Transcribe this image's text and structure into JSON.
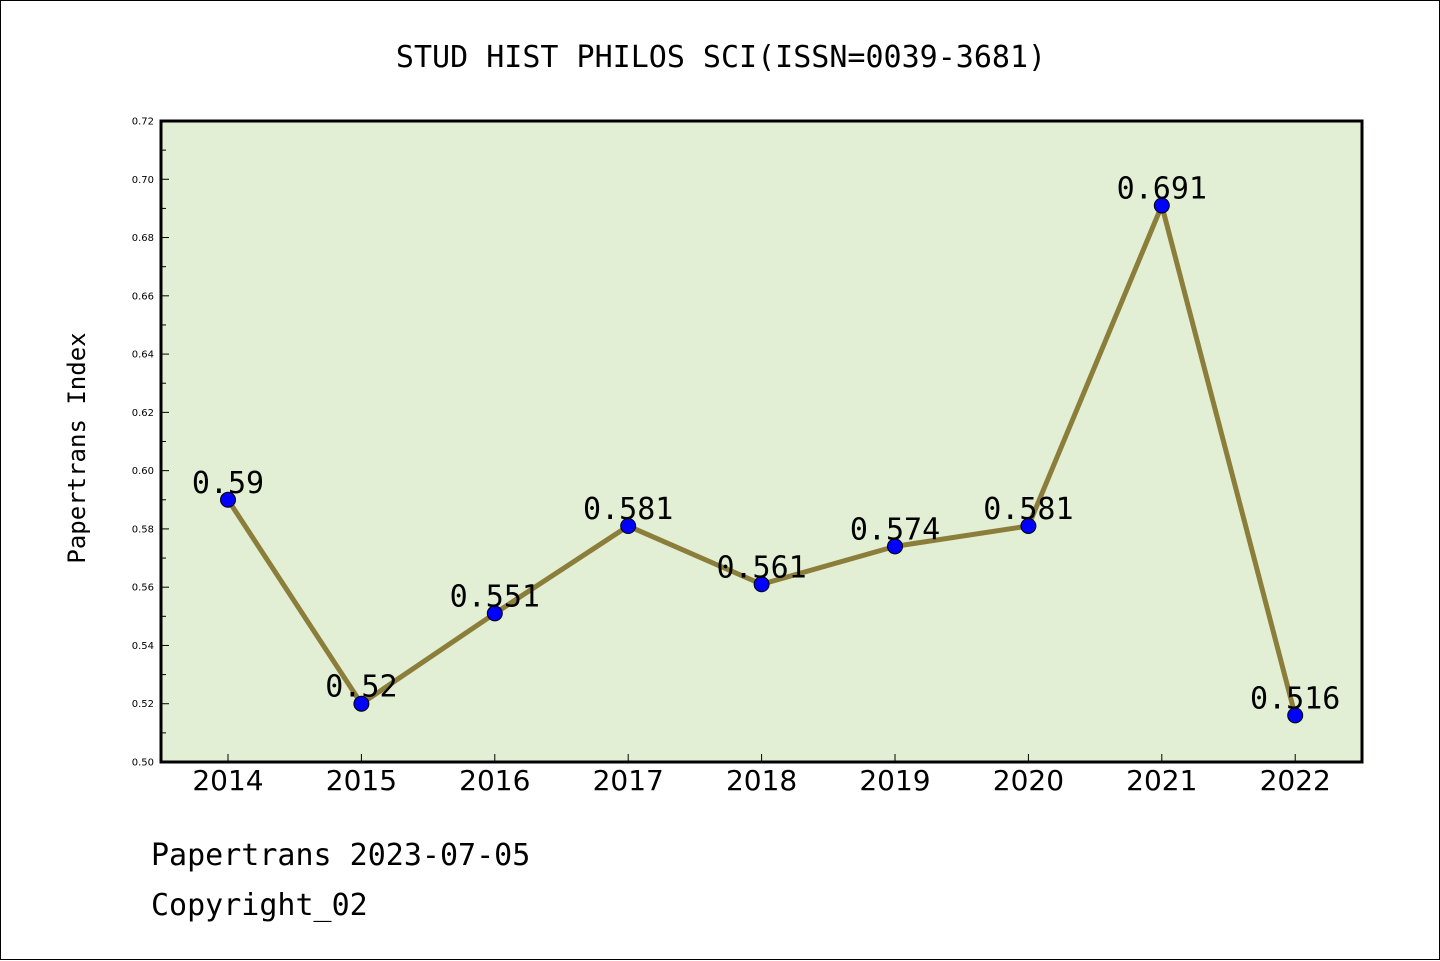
{
  "chart_data": {
    "type": "line",
    "title": "STUD HIST PHILOS SCI(ISSN=0039-3681)",
    "xlabel": "",
    "ylabel": "Papertrans Index",
    "categories": [
      "2014",
      "2015",
      "2016",
      "2017",
      "2018",
      "2019",
      "2020",
      "2021",
      "2022"
    ],
    "values": [
      0.59,
      0.52,
      0.551,
      0.581,
      0.561,
      0.574,
      0.581,
      0.691,
      0.516
    ],
    "data_labels": [
      "0.59",
      "0.52",
      "0.551",
      "0.581",
      "0.561",
      "0.574",
      "0.581",
      "0.691",
      "0.516"
    ],
    "ylim": [
      0.5,
      0.72
    ],
    "yticks": [
      "0.50",
      "0.52",
      "0.54",
      "0.56",
      "0.58",
      "0.60",
      "0.62",
      "0.64",
      "0.66",
      "0.68",
      "0.70",
      "0.72"
    ],
    "grid": false,
    "legend": "none",
    "colors": {
      "plot_background": "#e2efd4",
      "line": "#8b7d3a",
      "marker": "#0000ff"
    }
  },
  "footer": {
    "line1": "Papertrans 2023-07-05",
    "line2": "Copyright_02"
  }
}
